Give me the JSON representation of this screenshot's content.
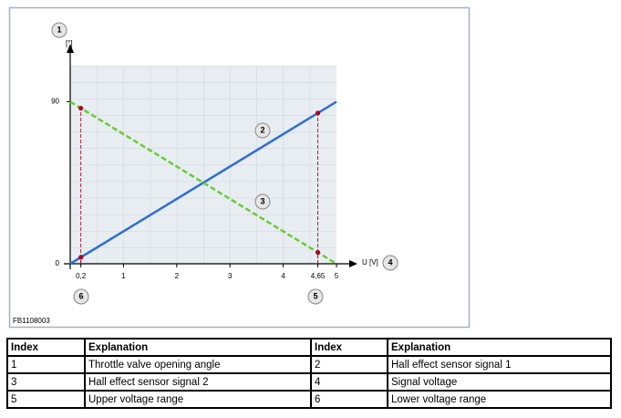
{
  "chart_data": {
    "type": "line",
    "figure_id": "FB1108003",
    "y_unit": "[°]",
    "x_label": "U [V]",
    "xlim": [
      0,
      5
    ],
    "ylim": [
      0,
      110
    ],
    "xticks": [
      {
        "value": 0.2,
        "label": "0,2"
      },
      1,
      2,
      3,
      4,
      {
        "value": 4.65,
        "label": "4,65"
      },
      5
    ],
    "yticks": [
      0,
      90
    ],
    "series": [
      {
        "color": "#2e6fd6",
        "dashed": false,
        "x": [
          0,
          5
        ],
        "values": [
          0,
          90
        ]
      },
      {
        "color": "#66cc33",
        "dashed": true,
        "x": [
          0,
          5
        ],
        "values": [
          90,
          0
        ]
      }
    ],
    "highlights": {
      "color": "#b00020",
      "x": [
        0.2,
        0.2,
        4.65,
        4.65
      ],
      "values": [
        86.4,
        3.6,
        83.7,
        6.3
      ]
    },
    "callouts": [
      "1",
      "2",
      "3",
      "4",
      "5",
      "6"
    ]
  },
  "table": {
    "header": [
      "Index",
      "Explanation",
      "Index",
      "Explanation"
    ],
    "rows": [
      [
        "1",
        "Throttle valve opening angle",
        "2",
        "Hall effect sensor signal 1"
      ],
      [
        "3",
        "Hall effect sensor signal 2",
        "4",
        "Signal voltage"
      ],
      [
        "5",
        "Upper voltage range",
        "6",
        "Lower voltage range"
      ]
    ]
  }
}
